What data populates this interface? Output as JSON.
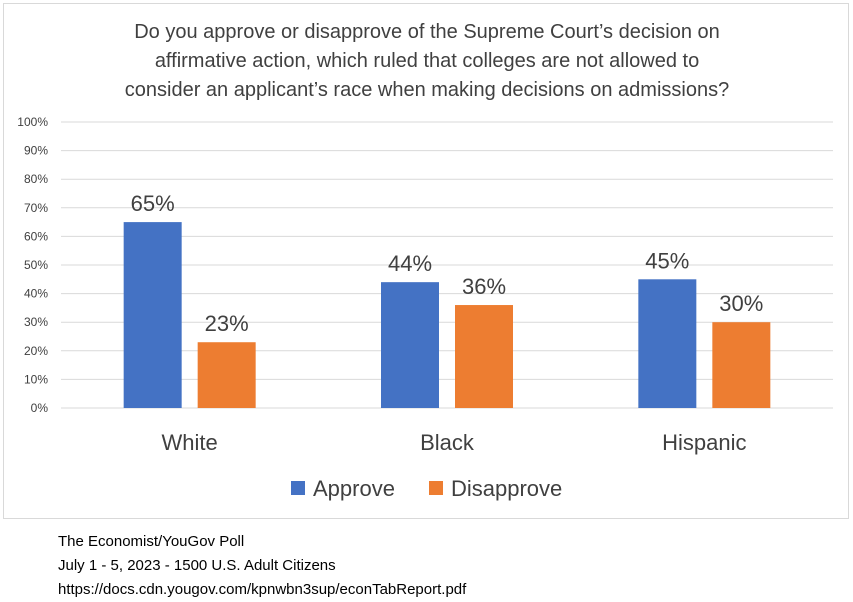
{
  "chart_data": {
    "type": "bar",
    "title_lines": [
      "Do you approve or disapprove of the Supreme Court’s decision on",
      "affirmative action, which ruled that colleges are not allowed to",
      "consider an applicant’s race when making decisions on admissions?"
    ],
    "categories": [
      "White",
      "Black",
      "Hispanic"
    ],
    "series": [
      {
        "name": "Approve",
        "color": "#4472c4",
        "values": [
          65,
          44,
          45
        ]
      },
      {
        "name": "Disapprove",
        "color": "#ed7d31",
        "values": [
          23,
          36,
          30
        ]
      }
    ],
    "ylim": [
      0,
      100
    ],
    "yticks": [
      "0%",
      "10%",
      "20%",
      "30%",
      "40%",
      "50%",
      "60%",
      "70%",
      "80%",
      "90%",
      "100%"
    ],
    "value_suffix": "%",
    "grid": true,
    "legend_position": "bottom"
  },
  "source": {
    "line1": "The Economist/YouGov Poll",
    "line2": "July 1 - 5, 2023 - 1500 U.S. Adult Citizens",
    "line3": "https://docs.cdn.yougov.com/kpnwbn3sup/econTabReport.pdf"
  }
}
